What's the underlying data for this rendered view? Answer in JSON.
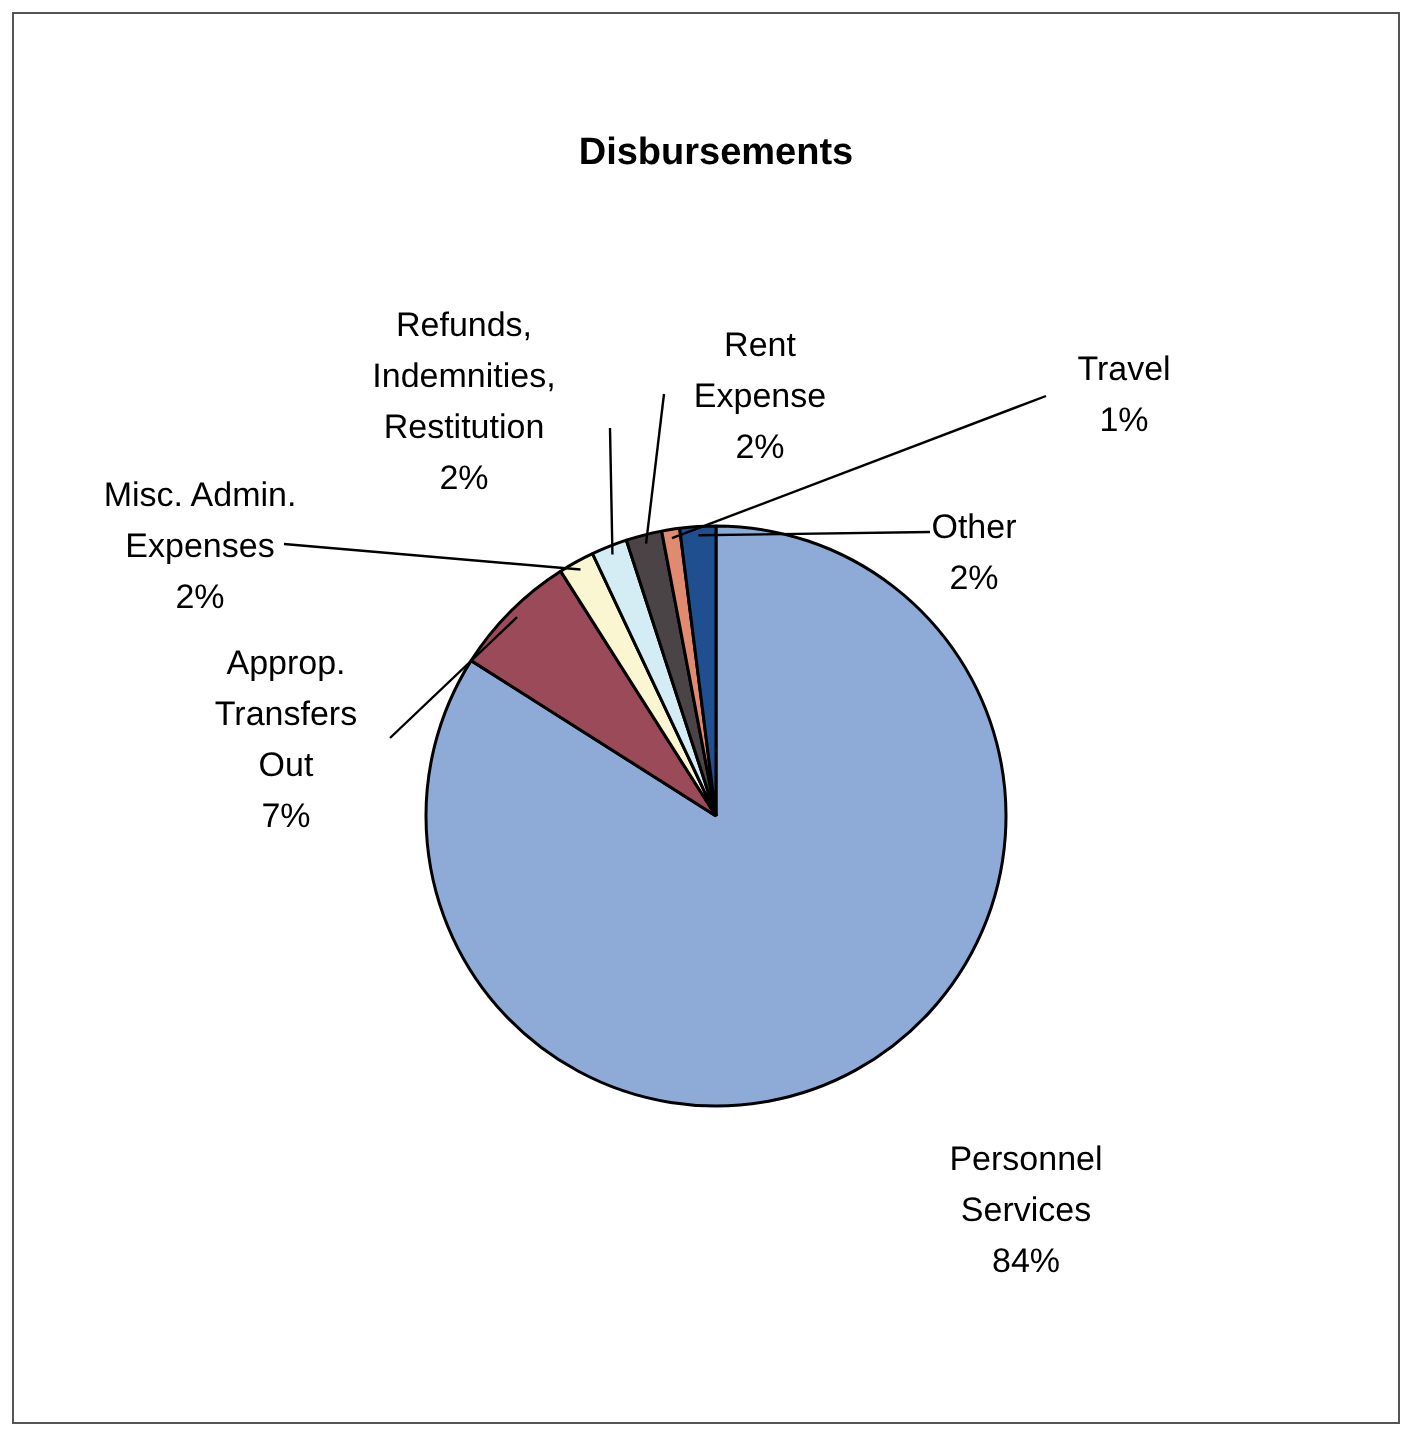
{
  "chart_data": {
    "type": "pie",
    "title": "Disbursements",
    "categories": [
      "Personnel Services",
      "Approp. Transfers Out",
      "Misc. Admin. Expenses",
      "Refunds, Indemnities, Restitution",
      "Rent Expense",
      "Travel",
      "Other"
    ],
    "values": [
      84,
      7,
      2,
      2,
      2,
      1,
      2
    ],
    "value_labels": [
      "84%",
      "7%",
      "2%",
      "2%",
      "2%",
      "1%",
      "2%"
    ],
    "colors": [
      "#8eaad6",
      "#9b4a5a",
      "#fbf6d2",
      "#d4ecf4",
      "#4a4446",
      "#e08a70",
      "#1f4f8f"
    ],
    "legend": false
  }
}
